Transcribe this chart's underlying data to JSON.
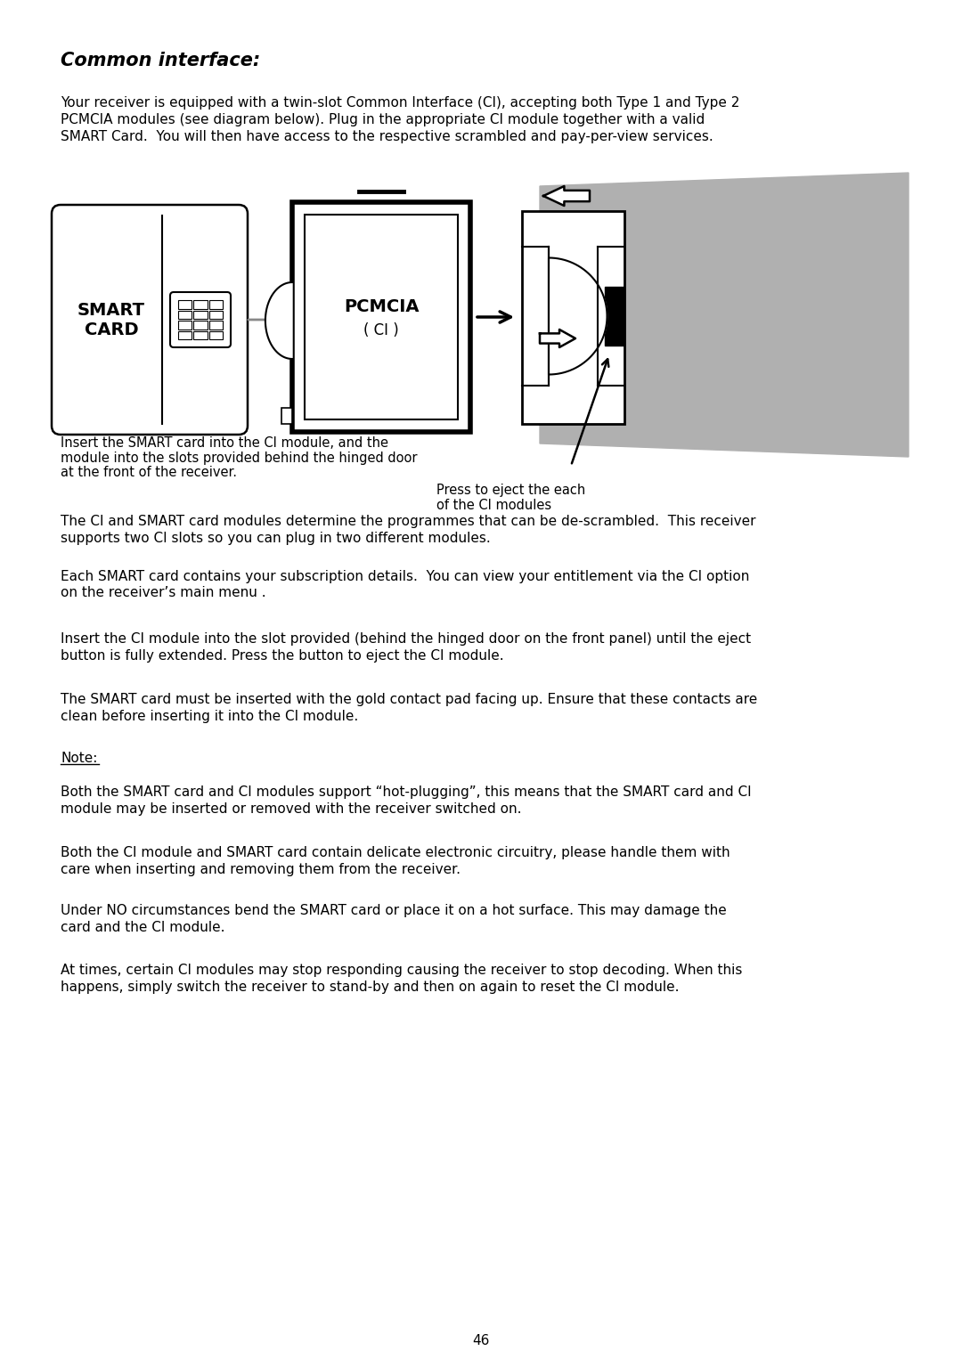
{
  "title": "Common interface:",
  "page_number": "46",
  "background_color": "#ffffff",
  "text_color": "#000000",
  "para1": "Your receiver is equipped with a twin-slot Common Interface (CI), accepting both Type 1 and Type 2 PCMCIA modules (see diagram below). Plug in the appropriate CI module together with a valid SMART Card.  You will then have access to the respective scrambled and pay-per-view services.",
  "diagram_caption_left_lines": [
    "Insert the SMART card into the CI module, and the",
    "module into the slots provided behind the hinged door",
    "at the front of the receiver."
  ],
  "diagram_caption_right_lines": [
    "Press to eject the each",
    "of the CI modules"
  ],
  "para2": "The CI and SMART card modules determine the programmes that can be de-scrambled.  This receiver supports two CI slots so you can plug in two different modules.",
  "para3": "Each SMART card contains your subscription details.  You can view your entitlement via the CI option on the receiver’s main menu .",
  "para4": "Insert the CI module into the slot provided (behind the hinged door on the front panel) until the eject button is fully extended. Press the button to eject the CI module.",
  "para5": "The SMART card must be inserted with the gold contact pad facing up. Ensure that these contacts are clean before inserting it into the CI module.",
  "note_label": "Note:",
  "note1": "Both the SMART card and CI modules support “hot-plugging”, this means that the SMART card and CI module may be inserted or removed with the receiver switched on.",
  "note2": "Both the CI module and SMART card contain delicate electronic circuitry, please handle them with care when inserting and removing them from the receiver.",
  "note3": "Under NO circumstances bend the SMART card or place it on a hot surface. This may damage the card and the CI module.",
  "note4": "At times, certain CI modules may stop responding causing the receiver to stop decoding. When this happens, simply switch the receiver to stand-by and then on again to reset the CI module.",
  "para1_lines": [
    "Your receiver is equipped with a twin-slot Common Interface (CI), accepting both Type 1 and Type 2",
    "PCMCIA modules (see diagram below). Plug in the appropriate CI module together with a valid",
    "SMART Card.  You will then have access to the respective scrambled and pay-per-view services."
  ],
  "para2_lines": [
    "The CI and SMART card modules determine the programmes that can be de-scrambled.  This receiver",
    "supports two CI slots so you can plug in two different modules."
  ],
  "para3_lines": [
    "Each SMART card contains your subscription details.  You can view your entitlement via the CI option",
    "on the receiver’s main menu ."
  ],
  "para4_lines": [
    "Insert the CI module into the slot provided (behind the hinged door on the front panel) until the eject",
    "button is fully extended. Press the button to eject the CI module."
  ],
  "para5_lines": [
    "The SMART card must be inserted with the gold contact pad facing up. Ensure that these contacts are",
    "clean before inserting it into the CI module."
  ],
  "note1_lines": [
    "Both the SMART card and CI modules support “hot-plugging”, this means that the SMART card and CI",
    "module may be inserted or removed with the receiver switched on."
  ],
  "note2_lines": [
    "Both the CI module and SMART card contain delicate electronic circuitry, please handle them with",
    "care when inserting and removing them from the receiver."
  ],
  "note3_lines": [
    "Under NO circumstances bend the SMART card or place it on a hot surface. This may damage the",
    "card and the CI module."
  ],
  "note4_lines": [
    "At times, certain CI modules may stop responding causing the receiver to stop decoding. When this",
    "happens, simply switch the receiver to stand-by and then on again to reset the CI module."
  ]
}
